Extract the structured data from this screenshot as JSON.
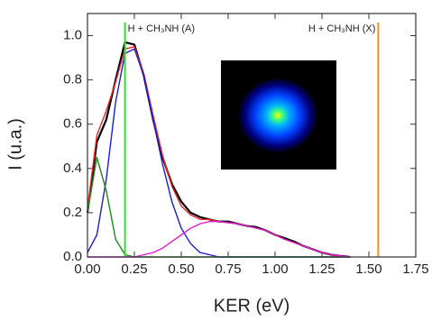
{
  "chart_data": {
    "type": "line",
    "x_label": "KER (eV)",
    "y_label": "I (u.a.)",
    "x": [
      0,
      0.05,
      0.1,
      0.15,
      0.2,
      0.25,
      0.3,
      0.35,
      0.4,
      0.45,
      0.5,
      0.55,
      0.6,
      0.65,
      0.7,
      0.75,
      0.8,
      0.85,
      0.9,
      0.95,
      1.0,
      1.05,
      1.1,
      1.15,
      1.2,
      1.25,
      1.3,
      1.35,
      1.4
    ],
    "series": [
      {
        "color": "#000000",
        "values": [
          0.2,
          0.52,
          0.62,
          0.8,
          0.97,
          0.96,
          0.82,
          0.62,
          0.45,
          0.33,
          0.25,
          0.2,
          0.18,
          0.17,
          0.16,
          0.16,
          0.15,
          0.14,
          0.135,
          0.12,
          0.1,
          0.085,
          0.07,
          0.05,
          0.035,
          0.02,
          0.01,
          0.005,
          0
        ]
      },
      {
        "color": "#e8282a",
        "values": [
          0.22,
          0.55,
          0.66,
          0.79,
          0.94,
          0.95,
          0.83,
          0.64,
          0.46,
          0.32,
          0.23,
          0.19,
          0.17,
          0.17,
          0.16,
          0.155,
          0.15,
          0.14,
          0.13,
          0.12,
          0.1,
          0.08,
          0.065,
          0.05,
          0.035,
          0.02,
          0.01,
          0.005,
          0
        ]
      },
      {
        "color": "#1c1cd8",
        "values": [
          0.02,
          0.1,
          0.35,
          0.7,
          0.92,
          0.94,
          0.82,
          0.62,
          0.42,
          0.25,
          0.13,
          0.06,
          0.02,
          0.01,
          0,
          0,
          0,
          0,
          0,
          0,
          0,
          0,
          0,
          0,
          0,
          0,
          0,
          0,
          0
        ]
      },
      {
        "color": "#1f8a1f",
        "values": [
          0.2,
          0.45,
          0.3,
          0.08,
          0.01,
          0,
          0,
          0,
          0,
          0,
          0,
          0,
          0,
          0,
          0,
          0,
          0,
          0,
          0,
          0,
          0,
          0,
          0,
          0,
          0,
          0,
          0,
          0,
          0
        ]
      },
      {
        "color": "#e020d0",
        "values": [
          0,
          0,
          0,
          0,
          0,
          0,
          0.01,
          0.02,
          0.04,
          0.07,
          0.1,
          0.13,
          0.15,
          0.16,
          0.16,
          0.155,
          0.15,
          0.14,
          0.13,
          0.12,
          0.1,
          0.08,
          0.065,
          0.05,
          0.035,
          0.02,
          0.01,
          0.005,
          0
        ]
      }
    ],
    "vlines": [
      {
        "x": 0.2,
        "color": "#33dd33",
        "label": "H + CH₃NH (A)"
      },
      {
        "x": 1.55,
        "color": "#ff8c1a",
        "label": "H + CH₃NH (X)"
      }
    ],
    "xlim": [
      0,
      1.75
    ],
    "xticks": [
      {
        "value": 0,
        "label": "0.00"
      },
      {
        "value": 0.25,
        "label": "0.25"
      },
      {
        "value": 0.5,
        "label": "0.50"
      },
      {
        "value": 0.75,
        "label": "0.75"
      },
      {
        "value": 1.0,
        "label": "1.00"
      },
      {
        "value": 1.25,
        "label": "1.25"
      },
      {
        "value": 1.5,
        "label": "1.50"
      },
      {
        "value": 1.75,
        "label": "1.75"
      }
    ],
    "ylim": [
      0,
      1.1
    ],
    "yticks": [
      {
        "value": 0,
        "label": "0.0"
      },
      {
        "value": 0.2,
        "label": "0.2"
      },
      {
        "value": 0.4,
        "label": "0.4"
      },
      {
        "value": 0.6,
        "label": "0.6"
      },
      {
        "value": 0.8,
        "label": "0.8"
      },
      {
        "value": 1.0,
        "label": "1.0"
      }
    ]
  }
}
